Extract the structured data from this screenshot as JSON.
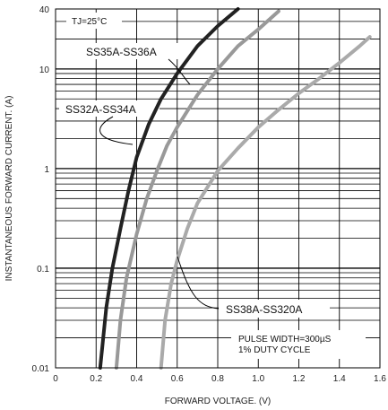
{
  "chart_data": {
    "type": "line",
    "title": "",
    "xlabel": "FORWARD VOLTAGE. (V)",
    "ylabel": "INSTANTANEOUS FORWARD CURRENT. (A)",
    "xlim": [
      0,
      1.6
    ],
    "ylim": [
      0.01,
      40
    ],
    "yscale": "log",
    "grid": true,
    "x_ticks": [
      "0",
      "0.2",
      "0.4",
      "0.6",
      "0.8",
      "1.0",
      "1.2",
      "1.4",
      "1.6"
    ],
    "y_ticks": [
      "0.01",
      "0.1",
      "1",
      "10",
      "40"
    ],
    "series": [
      {
        "name": "SS35A-SS36A",
        "color": "#222222",
        "x": [
          0.22,
          0.25,
          0.28,
          0.32,
          0.36,
          0.4,
          0.46,
          0.52,
          0.6,
          0.7,
          0.8,
          0.9
        ],
        "y": [
          0.01,
          0.04,
          0.1,
          0.25,
          0.6,
          1.3,
          2.8,
          5.0,
          9.0,
          17,
          27,
          40
        ]
      },
      {
        "name": "SS32A-SS34A",
        "color": "#999999",
        "x": [
          0.3,
          0.32,
          0.35,
          0.4,
          0.45,
          0.5,
          0.55,
          0.6,
          0.7,
          0.8,
          0.9,
          1.0,
          1.1
        ],
        "y": [
          0.01,
          0.03,
          0.08,
          0.22,
          0.5,
          0.95,
          1.7,
          2.6,
          5.5,
          10,
          17,
          25,
          38
        ]
      },
      {
        "name": "SS38A-SS320A",
        "color": "#aaaaaa",
        "x": [
          0.52,
          0.54,
          0.57,
          0.6,
          0.65,
          0.7,
          0.8,
          0.9,
          1.0,
          1.1,
          1.2,
          1.3,
          1.4,
          1.5,
          1.55
        ],
        "y": [
          0.01,
          0.03,
          0.07,
          0.12,
          0.25,
          0.45,
          0.95,
          1.6,
          2.6,
          3.9,
          5.7,
          8.0,
          11.5,
          17,
          21
        ]
      }
    ],
    "annotations": {
      "condition": "TJ=25°C",
      "pulse_line1": "PULSE WIDTH=300µS",
      "pulse_line2": "1% DUTY CYCLE"
    }
  }
}
